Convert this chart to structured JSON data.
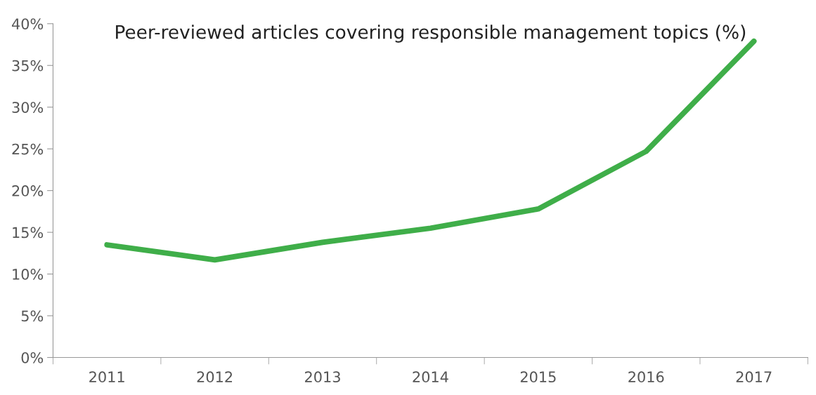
{
  "chart_data": {
    "type": "line",
    "title": "Peer-reviewed articles covering responsible management topics (%)",
    "categories": [
      "2011",
      "2012",
      "2013",
      "2014",
      "2015",
      "2016",
      "2017"
    ],
    "series": [
      {
        "color": "#3fae49",
        "values": [
          13.5,
          11.7,
          13.8,
          15.5,
          17.8,
          24.7,
          37.9
        ]
      }
    ],
    "ylim": [
      0,
      40
    ],
    "yticks": [
      {
        "value": 0,
        "label": "0%"
      },
      {
        "value": 5,
        "label": "5%"
      },
      {
        "value": 10,
        "label": "10%"
      },
      {
        "value": 15,
        "label": "15%"
      },
      {
        "value": 20,
        "label": "20%"
      },
      {
        "value": 25,
        "label": "25%"
      },
      {
        "value": 30,
        "label": "30%"
      },
      {
        "value": 35,
        "label": "35%"
      },
      {
        "value": 40,
        "label": "40%"
      }
    ],
    "grid": false,
    "marker": "none",
    "line_style": "solid"
  }
}
